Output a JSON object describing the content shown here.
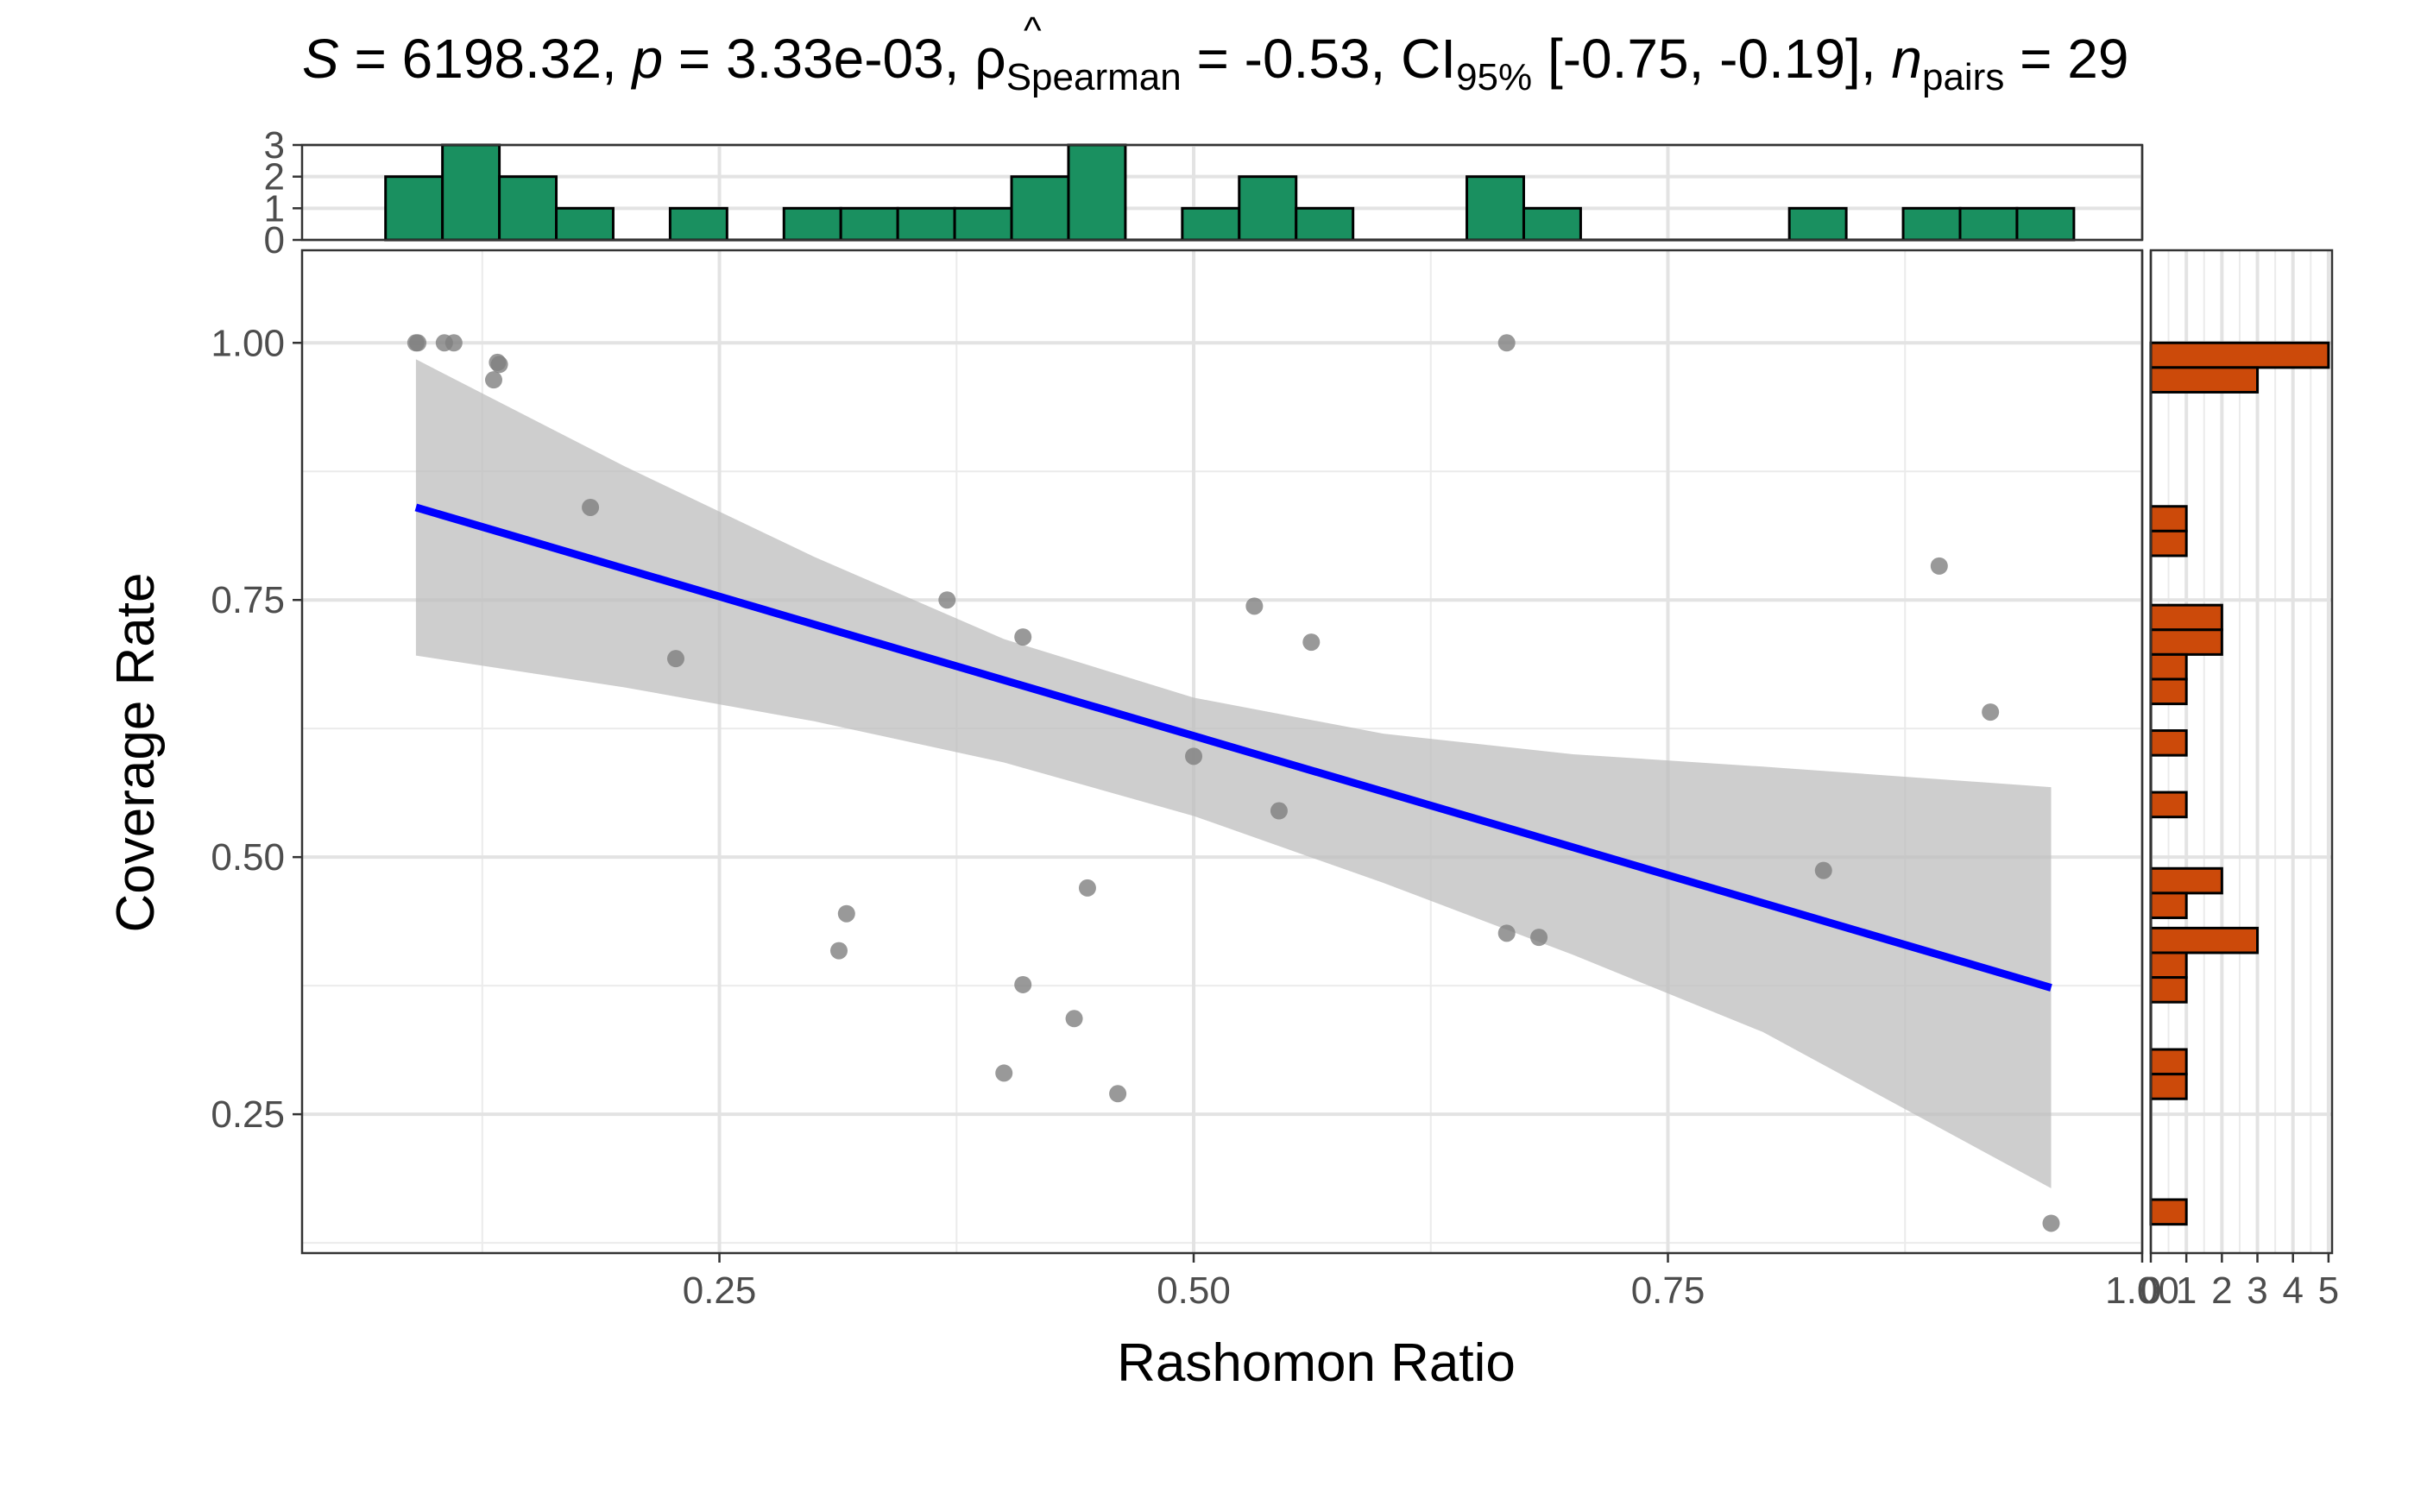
{
  "title": {
    "s_symbol": "S",
    "s_value": " = 6198.32, ",
    "p_symbol": "p",
    "p_value": " = 3.33e-03, ",
    "rho_symbol": "ρ",
    "rho_sub": "Spearman",
    "rho_value": " = -0.53, CI",
    "ci_sub": "95%",
    "ci_value": " [-0.75, -0.19], ",
    "n_symbol": "n",
    "n_sub": "pairs",
    "n_value": " = 29"
  },
  "chart_data": {
    "type": "scatter",
    "xlabel": "Rashomon Ratio",
    "ylabel": "Coverage Rate",
    "xlim": [
      0.03,
      1.0
    ],
    "ylim": [
      0.115,
      1.09
    ],
    "x_ticks": [
      0.25,
      0.5,
      0.75,
      1.0
    ],
    "x_tick_labels": [
      "0.25",
      "0.50",
      "0.75",
      "1.00"
    ],
    "y_ticks": [
      0.25,
      0.5,
      0.75,
      1.0
    ],
    "y_tick_labels": [
      "0.25",
      "0.50",
      "0.75",
      "1.00"
    ],
    "grid": true,
    "points": [
      {
        "x": 0.09,
        "y": 1.0
      },
      {
        "x": 0.091,
        "y": 1.0
      },
      {
        "x": 0.105,
        "y": 1.0
      },
      {
        "x": 0.11,
        "y": 1.0
      },
      {
        "x": 0.131,
        "y": 0.964
      },
      {
        "x": 0.133,
        "y": 0.981
      },
      {
        "x": 0.134,
        "y": 0.979
      },
      {
        "x": 0.182,
        "y": 0.84
      },
      {
        "x": 0.227,
        "y": 0.693
      },
      {
        "x": 0.313,
        "y": 0.409
      },
      {
        "x": 0.317,
        "y": 0.445
      },
      {
        "x": 0.37,
        "y": 0.75
      },
      {
        "x": 0.4,
        "y": 0.29
      },
      {
        "x": 0.41,
        "y": 0.714
      },
      {
        "x": 0.41,
        "y": 0.376
      },
      {
        "x": 0.437,
        "y": 0.343
      },
      {
        "x": 0.444,
        "y": 0.47
      },
      {
        "x": 0.46,
        "y": 0.27
      },
      {
        "x": 0.5,
        "y": 0.598
      },
      {
        "x": 0.532,
        "y": 0.744
      },
      {
        "x": 0.545,
        "y": 0.545
      },
      {
        "x": 0.562,
        "y": 0.709
      },
      {
        "x": 0.665,
        "y": 1.0
      },
      {
        "x": 0.665,
        "y": 0.426
      },
      {
        "x": 0.682,
        "y": 0.422
      },
      {
        "x": 0.832,
        "y": 0.487
      },
      {
        "x": 0.893,
        "y": 0.783
      },
      {
        "x": 0.92,
        "y": 0.641
      },
      {
        "x": 0.952,
        "y": 0.144
      }
    ],
    "fit_line": {
      "x": [
        0.09,
        0.952
      ],
      "y": [
        0.84,
        0.373
      ],
      "color": "#0000ff"
    },
    "confidence_band": {
      "color": "#bebebe",
      "x": [
        0.09,
        0.2,
        0.3,
        0.4,
        0.5,
        0.6,
        0.7,
        0.8,
        0.952
      ],
      "lower": [
        0.696,
        0.665,
        0.632,
        0.592,
        0.54,
        0.475,
        0.405,
        0.33,
        0.178
      ],
      "upper": [
        0.984,
        0.88,
        0.792,
        0.712,
        0.655,
        0.62,
        0.6,
        0.588,
        0.568
      ]
    },
    "point_color": "#808080",
    "x_marginal_histogram": {
      "fill": "#1a9060",
      "y_ticks": [
        0,
        1,
        2,
        3
      ],
      "bins": [
        {
          "x0": 0.074,
          "x1": 0.104,
          "count": 2
        },
        {
          "x0": 0.104,
          "x1": 0.134,
          "count": 3
        },
        {
          "x0": 0.134,
          "x1": 0.164,
          "count": 2
        },
        {
          "x0": 0.164,
          "x1": 0.194,
          "count": 1
        },
        {
          "x0": 0.224,
          "x1": 0.254,
          "count": 1
        },
        {
          "x0": 0.284,
          "x1": 0.314,
          "count": 1
        },
        {
          "x0": 0.314,
          "x1": 0.344,
          "count": 1
        },
        {
          "x0": 0.344,
          "x1": 0.374,
          "count": 1
        },
        {
          "x0": 0.374,
          "x1": 0.404,
          "count": 1
        },
        {
          "x0": 0.404,
          "x1": 0.434,
          "count": 2
        },
        {
          "x0": 0.434,
          "x1": 0.464,
          "count": 3
        },
        {
          "x0": 0.494,
          "x1": 0.524,
          "count": 1
        },
        {
          "x0": 0.524,
          "x1": 0.554,
          "count": 2
        },
        {
          "x0": 0.554,
          "x1": 0.584,
          "count": 1
        },
        {
          "x0": 0.644,
          "x1": 0.674,
          "count": 2
        },
        {
          "x0": 0.674,
          "x1": 0.704,
          "count": 1
        },
        {
          "x0": 0.814,
          "x1": 0.844,
          "count": 1
        },
        {
          "x0": 0.874,
          "x1": 0.904,
          "count": 1
        },
        {
          "x0": 0.904,
          "x1": 0.934,
          "count": 1
        },
        {
          "x0": 0.934,
          "x1": 0.964,
          "count": 1
        }
      ]
    },
    "y_marginal_histogram": {
      "fill": "#cc4a0a",
      "x_ticks": [
        0,
        1,
        2,
        3,
        4,
        5
      ],
      "x_tick_labels": [
        "0",
        "1",
        "2",
        "3",
        "4",
        "5"
      ],
      "xlim": [
        0,
        5.1
      ],
      "bins": [
        {
          "y0": 0.976,
          "y1": 1.0,
          "count": 5
        },
        {
          "y0": 0.952,
          "y1": 0.976,
          "count": 3
        },
        {
          "y0": 0.817,
          "y1": 0.841,
          "count": 1
        },
        {
          "y0": 0.793,
          "y1": 0.817,
          "count": 1
        },
        {
          "y0": 0.721,
          "y1": 0.745,
          "count": 2
        },
        {
          "y0": 0.697,
          "y1": 0.721,
          "count": 2
        },
        {
          "y0": 0.673,
          "y1": 0.697,
          "count": 1
        },
        {
          "y0": 0.649,
          "y1": 0.673,
          "count": 1
        },
        {
          "y0": 0.599,
          "y1": 0.623,
          "count": 1
        },
        {
          "y0": 0.539,
          "y1": 0.563,
          "count": 1
        },
        {
          "y0": 0.465,
          "y1": 0.489,
          "count": 2
        },
        {
          "y0": 0.441,
          "y1": 0.465,
          "count": 1
        },
        {
          "y0": 0.407,
          "y1": 0.431,
          "count": 3
        },
        {
          "y0": 0.383,
          "y1": 0.407,
          "count": 1
        },
        {
          "y0": 0.359,
          "y1": 0.383,
          "count": 1
        },
        {
          "y0": 0.289,
          "y1": 0.313,
          "count": 1
        },
        {
          "y0": 0.265,
          "y1": 0.289,
          "count": 1
        },
        {
          "y0": 0.143,
          "y1": 0.167,
          "count": 1
        }
      ]
    }
  }
}
